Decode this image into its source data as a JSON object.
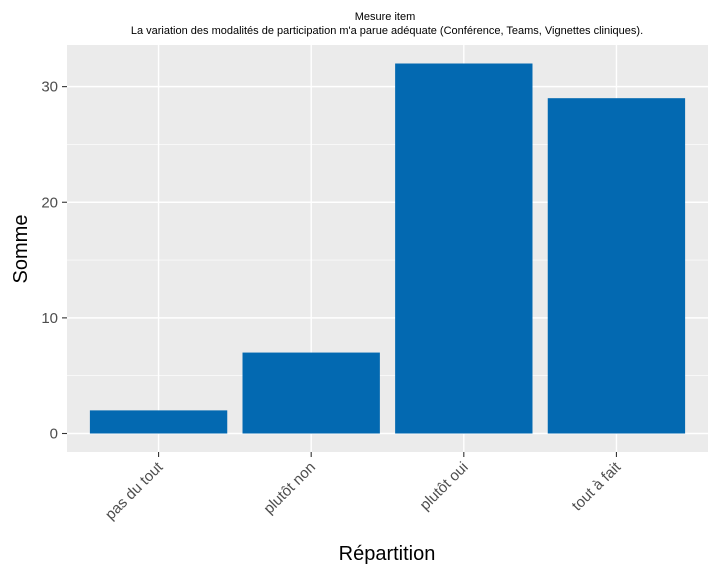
{
  "chart_data": {
    "type": "bar",
    "title": "Mesure item",
    "subtitle": "La variation des modalités de participation m'a parue adéquate (Conférence, Teams, Vignettes cliniques).",
    "xlabel": "Répartition",
    "ylabel": "Somme",
    "categories": [
      "pas du tout",
      "plutôt non",
      "plutôt oui",
      "tout à fait"
    ],
    "values": [
      2,
      7,
      32,
      29
    ],
    "yticks": [
      0,
      10,
      20,
      30
    ],
    "ylim": [
      -1.6,
      33.6
    ],
    "grid": true,
    "legend": "none",
    "bar_color": "#0369b1",
    "panel_color": "#ebebeb"
  }
}
